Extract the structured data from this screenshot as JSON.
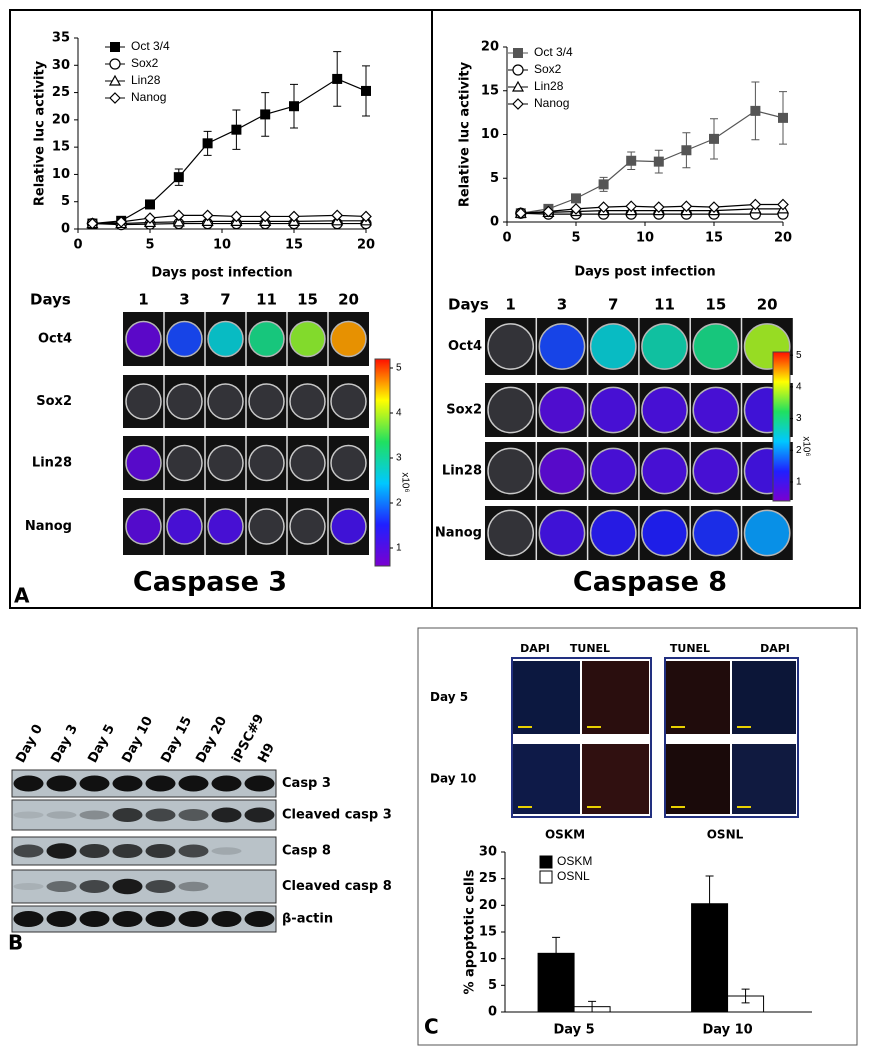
{
  "chart_data": [
    {
      "type": "line",
      "xlabel": "Days post  infection",
      "ylabel": "Relative luc activity",
      "x": [
        1,
        3,
        5,
        7,
        9,
        11,
        13,
        15,
        18,
        20
      ],
      "series": [
        {
          "name": "Oct 3/4",
          "color": "#000000",
          "marker": "square",
          "values": [
            1,
            1.5,
            4.5,
            9.5,
            15.7,
            18.2,
            21,
            22.5,
            27.5,
            25.3
          ],
          "errors": [
            0.5,
            0.5,
            0.5,
            1.5,
            2.2,
            3.6,
            4,
            4,
            5,
            4.6
          ]
        },
        {
          "name": "Sox2",
          "color": "#000000",
          "marker": "circle",
          "values": [
            1,
            0.8,
            0.9,
            1,
            1,
            1,
            1,
            1,
            1,
            1
          ]
        },
        {
          "name": "Lin28",
          "color": "#000000",
          "marker": "triangle",
          "values": [
            1,
            1,
            1.2,
            1.3,
            1.4,
            1.4,
            1.4,
            1.4,
            1.5,
            1.5
          ]
        },
        {
          "name": "Nanog",
          "color": "#000000",
          "marker": "diamond",
          "values": [
            1,
            1.3,
            2,
            2.5,
            2.5,
            2.3,
            2.3,
            2.3,
            2.5,
            2.3
          ]
        }
      ],
      "xlim": [
        0,
        20
      ],
      "xticks": [
        0,
        5,
        10,
        15,
        20
      ],
      "ylim": [
        0,
        35
      ],
      "yticks": [
        0,
        5,
        10,
        15,
        20,
        25,
        30,
        35
      ],
      "legend": "upper left"
    },
    {
      "type": "line",
      "xlabel": "Days post infection",
      "ylabel": "Relative luc activity",
      "x": [
        1,
        3,
        5,
        7,
        9,
        11,
        13,
        15,
        18,
        20
      ],
      "series": [
        {
          "name": "Oct 3/4",
          "color": "#555555",
          "marker": "square",
          "values": [
            1,
            1.5,
            2.7,
            4.3,
            7,
            6.9,
            8.2,
            9.5,
            12.7,
            11.9
          ],
          "errors": [
            0.3,
            0.3,
            0.3,
            0.8,
            1,
            1.3,
            2,
            2.3,
            3.3,
            3
          ]
        },
        {
          "name": "Sox2",
          "color": "#000000",
          "marker": "circle",
          "values": [
            1,
            0.9,
            0.9,
            0.9,
            0.9,
            0.9,
            0.9,
            0.9,
            0.9,
            0.9
          ]
        },
        {
          "name": "Lin28",
          "color": "#000000",
          "marker": "triangle",
          "values": [
            1,
            1.1,
            1.2,
            1.3,
            1.3,
            1.3,
            1.3,
            1.3,
            1.5,
            1.5
          ]
        },
        {
          "name": "Nanog",
          "color": "#000000",
          "marker": "diamond",
          "values": [
            1,
            1.2,
            1.5,
            1.7,
            1.8,
            1.7,
            1.8,
            1.7,
            2,
            2
          ]
        }
      ],
      "xlim": [
        0,
        20
      ],
      "xticks": [
        0,
        5,
        10,
        15,
        20
      ],
      "ylim": [
        0,
        20
      ],
      "yticks": [
        0,
        5,
        10,
        15,
        20
      ],
      "legend": "upper left"
    },
    {
      "type": "bar",
      "ylabel": "% apoptotic cells",
      "categories": [
        "Day 5",
        "Day 10"
      ],
      "series": [
        {
          "name": "OSKM",
          "color": "#000000",
          "values": [
            11,
            20.3
          ],
          "errors": [
            3,
            5.2
          ]
        },
        {
          "name": "OSNL",
          "color": "#ffffff",
          "values": [
            1,
            3
          ],
          "errors": [
            1,
            1.3
          ]
        }
      ],
      "ylim": [
        0,
        30
      ],
      "yticks": [
        0,
        5,
        10,
        15,
        20,
        25,
        30
      ],
      "legend": "upper left"
    }
  ],
  "panel_a": {
    "label": "A",
    "plates": [
      {
        "title": "Caspase 3",
        "days_label": "Days",
        "days": [
          "1",
          "3",
          "7",
          "11",
          "15",
          "20"
        ],
        "rows": [
          "Oct4",
          "Sox2",
          "Lin28",
          "Nanog"
        ],
        "colorbar": {
          "lim": [
            0.6,
            5.2
          ],
          "ticks": [
            1,
            2,
            3,
            4,
            5
          ],
          "label": "x10⁶"
        }
      },
      {
        "title": "Caspase 8",
        "days_label": "Days",
        "days": [
          "1",
          "3",
          "7",
          "11",
          "15",
          "20"
        ],
        "rows": [
          "Oct4",
          "Sox2",
          "Lin28",
          "Nanog"
        ],
        "colorbar": {
          "lim": [
            0.4,
            5.1
          ],
          "ticks": [
            1,
            2,
            3,
            4,
            5
          ],
          "label": "x10⁶"
        }
      }
    ]
  },
  "panel_b": {
    "label": "B",
    "lanes": [
      "Day 0",
      "Day 3",
      "Day 5",
      "Day 10",
      "Day 15",
      "Day 20",
      "iPSC#9",
      "H9"
    ],
    "bands": [
      "Casp 3",
      "Cleaved casp 3",
      "Casp 8",
      "Cleaved casp 8",
      "β-actin"
    ]
  },
  "panel_c": {
    "label": "C",
    "columns": [
      "DAPI",
      "TUNEL",
      "TUNEL",
      "DAPI"
    ],
    "rows": [
      "Day 5",
      "Day 10"
    ],
    "groups": [
      "OSKM",
      "OSNL"
    ]
  }
}
